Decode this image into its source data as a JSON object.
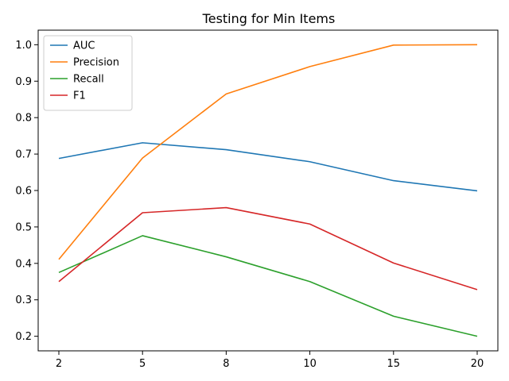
{
  "chart_data": {
    "type": "line",
    "title": "Testing for Min Items",
    "xlabel": "",
    "ylabel": "",
    "categories": [
      "2",
      "5",
      "8",
      "10",
      "15",
      "20"
    ],
    "ylim": [
      0.16,
      1.04
    ],
    "yticks": [
      0.2,
      0.3,
      0.4,
      0.5,
      0.6,
      0.7,
      0.8,
      0.9,
      1.0
    ],
    "ytick_labels": [
      "0.2",
      "0.3",
      "0.4",
      "0.5",
      "0.6",
      "0.7",
      "0.8",
      "0.9",
      "1.0"
    ],
    "grid": false,
    "legend_position": "top-left",
    "series": [
      {
        "name": "AUC",
        "color": "#1f77b4",
        "values": [
          0.688,
          0.731,
          0.712,
          0.679,
          0.627,
          0.599
        ]
      },
      {
        "name": "Precision",
        "color": "#ff7f0e",
        "values": [
          0.411,
          0.689,
          0.865,
          0.94,
          0.999,
          1.0
        ]
      },
      {
        "name": "Recall",
        "color": "#2ca02c",
        "values": [
          0.375,
          0.476,
          0.418,
          0.35,
          0.255,
          0.2
        ]
      },
      {
        "name": "F1",
        "color": "#d62728",
        "values": [
          0.35,
          0.539,
          0.553,
          0.508,
          0.401,
          0.328
        ]
      }
    ]
  }
}
